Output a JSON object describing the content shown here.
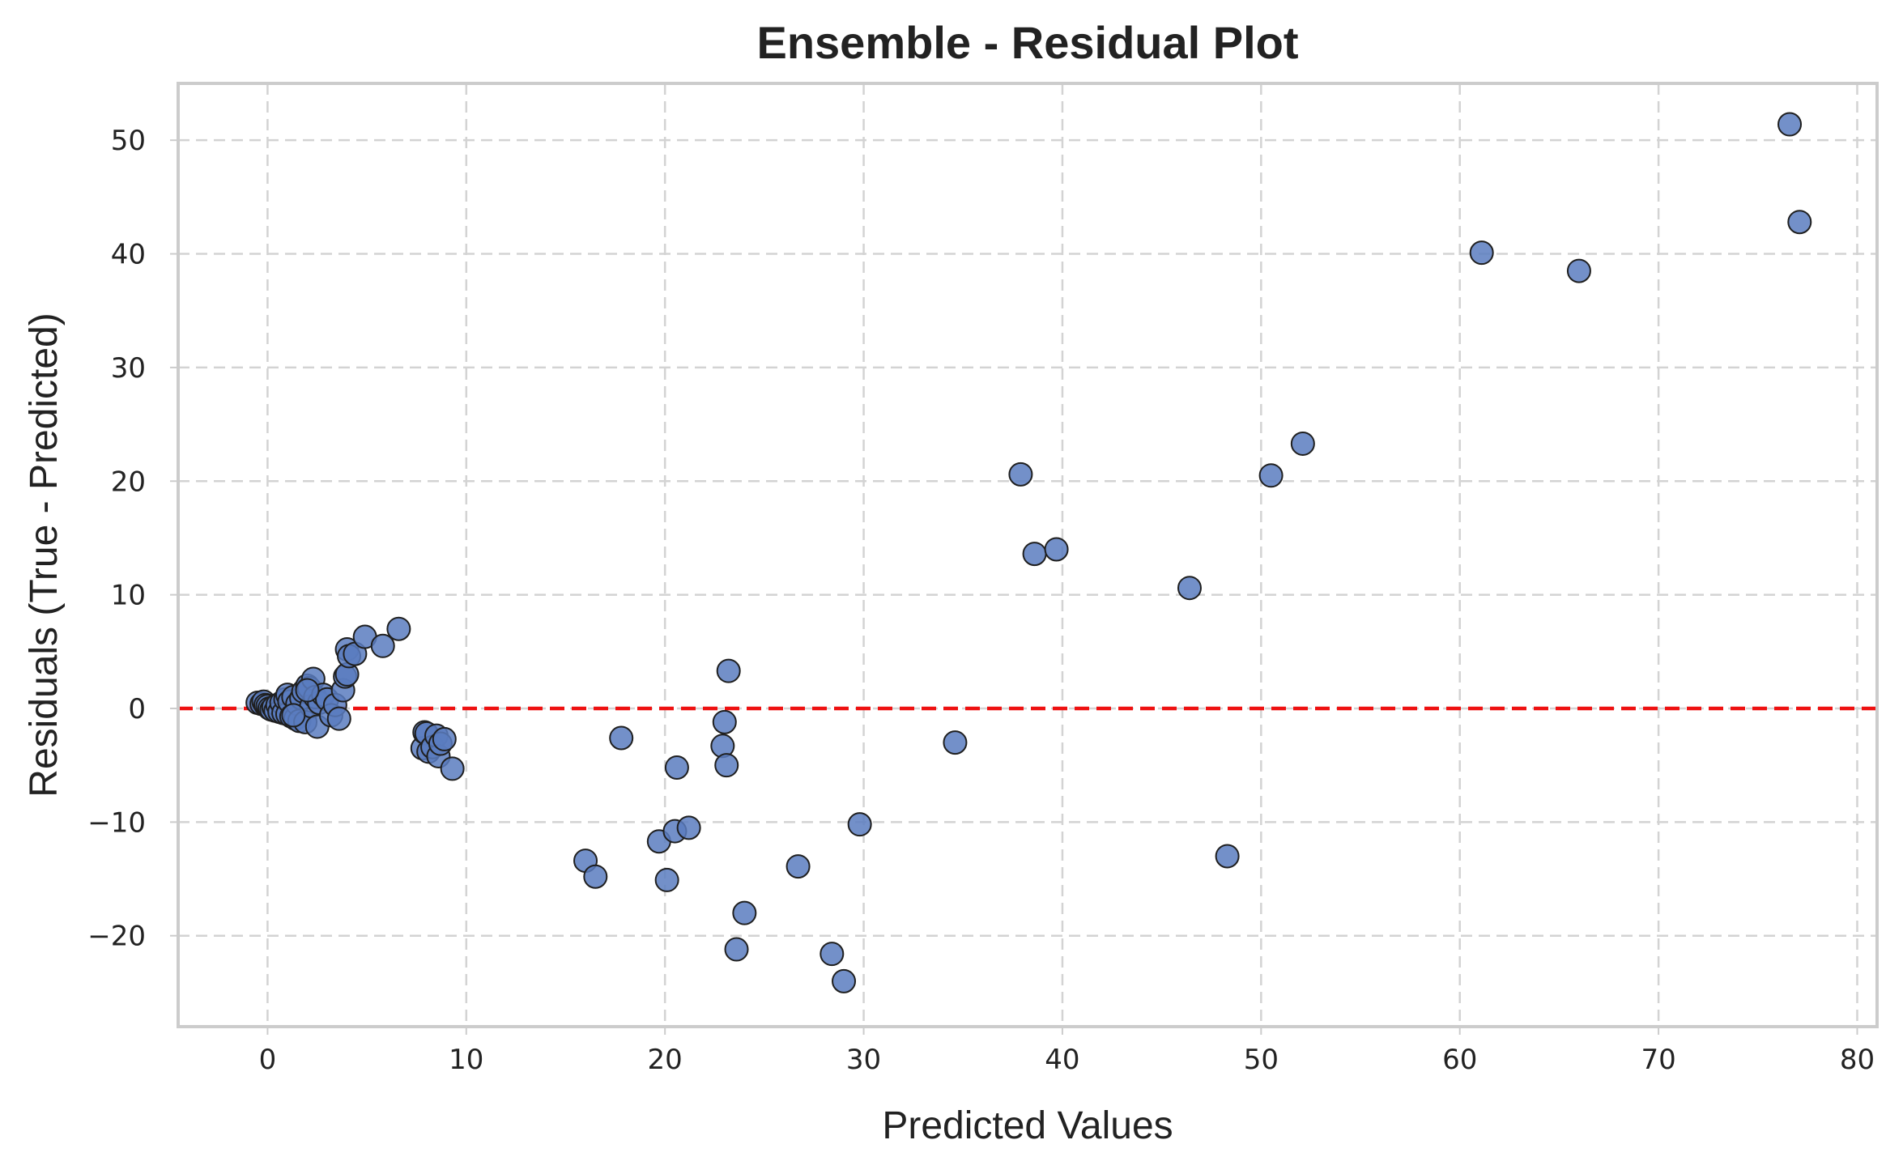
{
  "colors": {
    "marker_fill": "#5a7dbf",
    "marker_edge": "#1f1f1f",
    "reference_line": "#ee1111",
    "grid": "#d3d3d3",
    "frame": "#cccccc"
  },
  "chart_data": {
    "type": "scatter",
    "title": "Ensemble - Residual Plot",
    "xlabel": "Predicted Values",
    "ylabel": "Residuals (True - Predicted)",
    "xlim": [
      -4.5,
      81
    ],
    "ylim": [
      -28,
      55
    ],
    "xticks": [
      0,
      10,
      20,
      30,
      40,
      50,
      60,
      70,
      80
    ],
    "yticks": [
      -20,
      -10,
      0,
      10,
      20,
      30,
      40,
      50
    ],
    "xtick_labels": [
      "0",
      "10",
      "20",
      "30",
      "40",
      "50",
      "60",
      "70",
      "80"
    ],
    "ytick_labels": [
      "−20",
      "−10",
      "0",
      "10",
      "20",
      "30",
      "40",
      "50"
    ],
    "grid": true,
    "reference_line": {
      "y": 0,
      "style": "dashed"
    },
    "points": [
      [
        -0.5,
        0.5
      ],
      [
        -0.3,
        0.4
      ],
      [
        -0.2,
        0.6
      ],
      [
        -0.1,
        0.3
      ],
      [
        0.0,
        0.2
      ],
      [
        0.1,
        0.0
      ],
      [
        0.2,
        -0.1
      ],
      [
        0.3,
        0.1
      ],
      [
        0.4,
        -0.2
      ],
      [
        0.5,
        0.3
      ],
      [
        0.6,
        -0.3
      ],
      [
        0.7,
        0.5
      ],
      [
        0.8,
        -0.4
      ],
      [
        0.9,
        0.8
      ],
      [
        1.0,
        1.2
      ],
      [
        1.0,
        -0.5
      ],
      [
        1.1,
        0.6
      ],
      [
        1.2,
        -0.7
      ],
      [
        1.3,
        1.0
      ],
      [
        1.4,
        -0.9
      ],
      [
        1.5,
        0.4
      ],
      [
        1.6,
        -1.1
      ],
      [
        1.7,
        0.9
      ],
      [
        1.8,
        1.5
      ],
      [
        1.9,
        -1.2
      ],
      [
        2.0,
        2.0
      ],
      [
        2.1,
        1.8
      ],
      [
        2.2,
        0.2
      ],
      [
        2.3,
        2.6
      ],
      [
        2.4,
        1.0
      ],
      [
        2.5,
        -1.6
      ],
      [
        2.6,
        0.5
      ],
      [
        2.8,
        1.2
      ],
      [
        3.0,
        0.8
      ],
      [
        3.2,
        -0.6
      ],
      [
        3.4,
        0.3
      ],
      [
        3.6,
        -0.9
      ],
      [
        3.8,
        1.6
      ],
      [
        3.9,
        2.8
      ],
      [
        4.0,
        3.0
      ],
      [
        4.0,
        5.2
      ],
      [
        4.1,
        4.6
      ],
      [
        4.4,
        4.8
      ],
      [
        4.9,
        6.3
      ],
      [
        5.8,
        5.5
      ],
      [
        6.6,
        7.0
      ],
      [
        1.3,
        -0.6
      ],
      [
        2.0,
        1.6
      ],
      [
        7.8,
        -3.5
      ],
      [
        7.9,
        -2.1
      ],
      [
        8.0,
        -2.2
      ],
      [
        8.1,
        -3.8
      ],
      [
        8.3,
        -3.4
      ],
      [
        8.5,
        -2.4
      ],
      [
        8.6,
        -4.2
      ],
      [
        8.7,
        -3.1
      ],
      [
        8.9,
        -2.7
      ],
      [
        9.3,
        -5.3
      ],
      [
        16.0,
        -13.4
      ],
      [
        16.5,
        -14.8
      ],
      [
        17.8,
        -2.6
      ],
      [
        19.7,
        -11.7
      ],
      [
        20.1,
        -15.1
      ],
      [
        20.5,
        -10.8
      ],
      [
        20.6,
        -5.2
      ],
      [
        21.2,
        -10.5
      ],
      [
        22.9,
        -3.3
      ],
      [
        23.0,
        -1.2
      ],
      [
        23.1,
        -5.0
      ],
      [
        23.2,
        3.3
      ],
      [
        23.6,
        -21.2
      ],
      [
        24.0,
        -18.0
      ],
      [
        26.7,
        -13.9
      ],
      [
        28.4,
        -21.6
      ],
      [
        29.0,
        -24.0
      ],
      [
        29.8,
        -10.2
      ],
      [
        34.6,
        -3.0
      ],
      [
        37.9,
        20.6
      ],
      [
        38.6,
        13.6
      ],
      [
        39.7,
        14.0
      ],
      [
        46.4,
        10.6
      ],
      [
        48.3,
        -13.0
      ],
      [
        50.5,
        20.5
      ],
      [
        52.1,
        23.3
      ],
      [
        61.1,
        40.1
      ],
      [
        66.0,
        38.5
      ],
      [
        76.6,
        51.4
      ],
      [
        77.1,
        42.8
      ]
    ]
  }
}
